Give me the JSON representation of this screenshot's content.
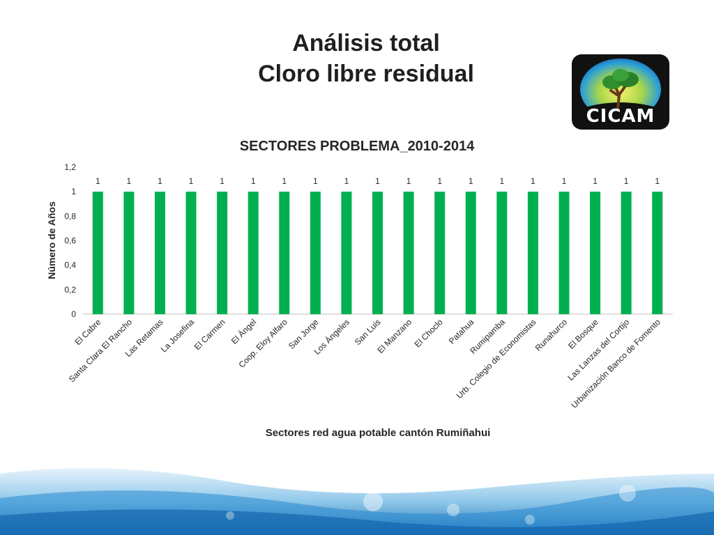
{
  "slide": {
    "title_line1": "Análisis total",
    "title_line2": "Cloro libre residual",
    "logo_text": "CICAM"
  },
  "colors": {
    "bar": "#00B050",
    "axis": "#bfbfbf",
    "text": "#262626"
  },
  "chart_data": {
    "type": "bar",
    "title": "SECTORES PROBLEMA_2010-2014",
    "xlabel": "Sectores red agua potable cantón Rumiñahui",
    "ylabel": "Número de Años",
    "ylim": [
      0,
      1.2
    ],
    "yticks": [
      "0",
      "0,2",
      "0,4",
      "0,6",
      "0,8",
      "1",
      "1,2"
    ],
    "grid": false,
    "legend": "none",
    "categories": [
      "El Cabre",
      "Santa Clara El Rancho",
      "Las Retamas",
      "La Josefina",
      "El Carmen",
      "El Ángel",
      "Coop. Eloy Alfaro",
      "San Jorge",
      "Los Ángeles",
      "San Luis",
      "El Manzano",
      "El Choclo",
      "Patahua",
      "Rumipamba",
      "Urb. Colegio de Economistas",
      "Runahurco",
      "El Bosque",
      "Las Lanzas del Cortijo",
      "Urbanización Banco de Fomento"
    ],
    "values": [
      1,
      1,
      1,
      1,
      1,
      1,
      1,
      1,
      1,
      1,
      1,
      1,
      1,
      1,
      1,
      1,
      1,
      1,
      1
    ],
    "data_labels": [
      "1",
      "1",
      "1",
      "1",
      "1",
      "1",
      "1",
      "1",
      "1",
      "1",
      "1",
      "1",
      "1",
      "1",
      "1",
      "1",
      "1",
      "1",
      "1"
    ]
  }
}
